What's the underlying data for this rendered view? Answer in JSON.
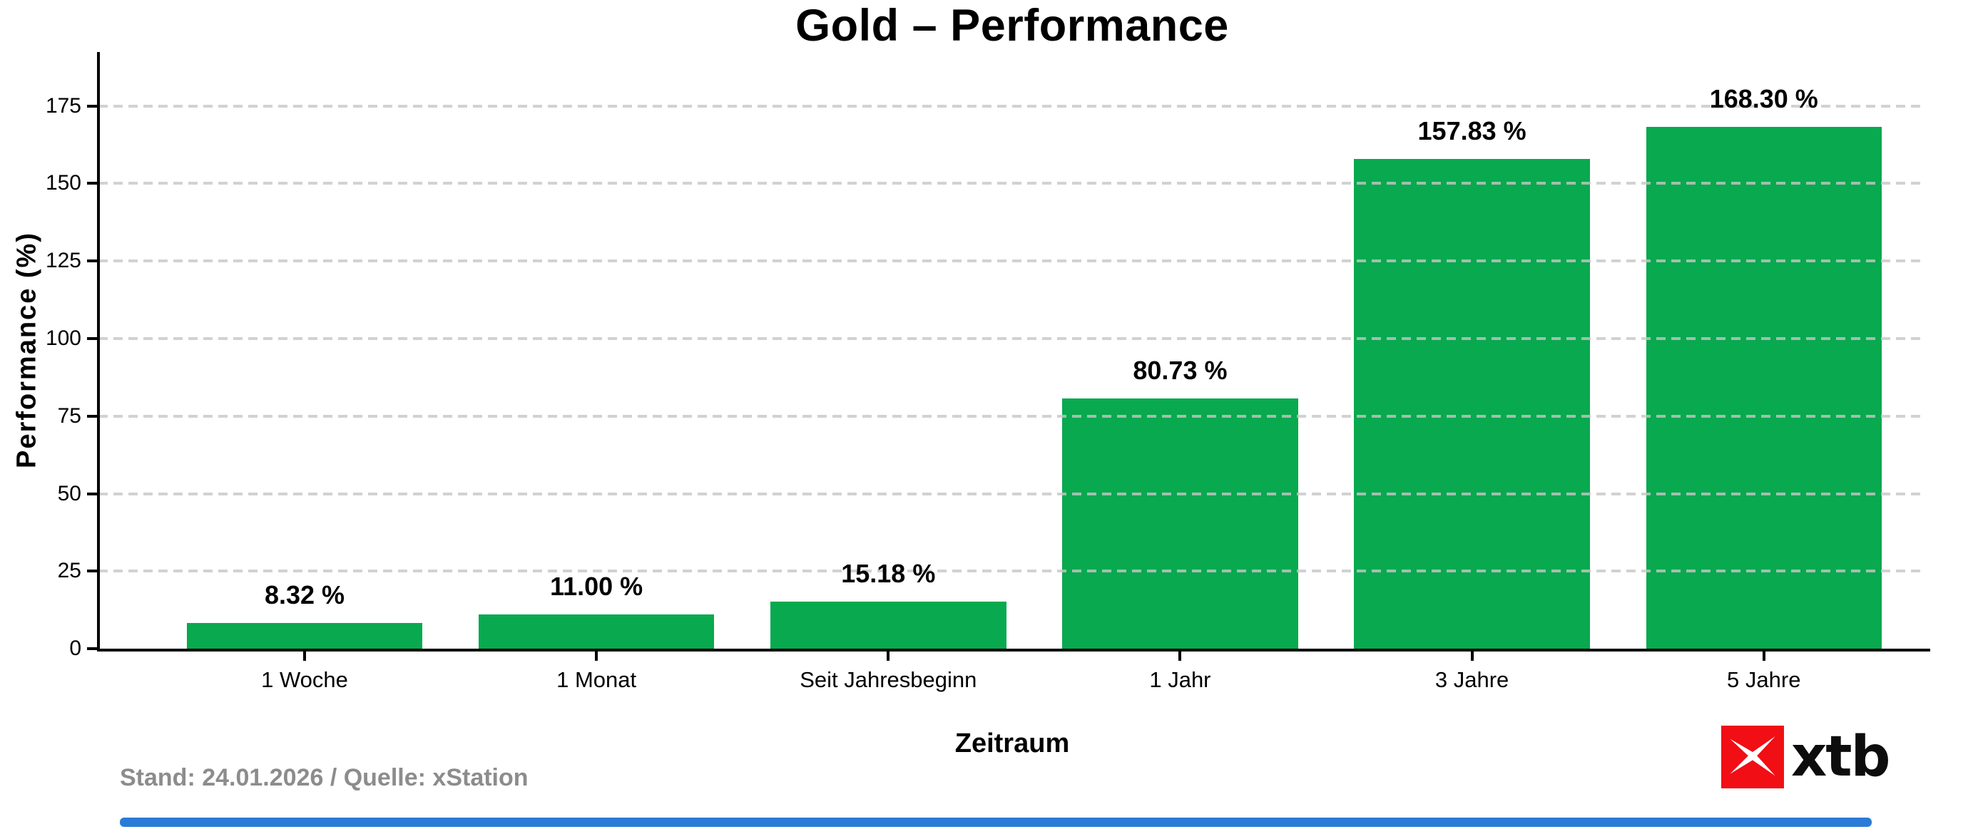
{
  "title": "Gold – Performance",
  "chart_data": {
    "type": "bar",
    "title": "Gold – Performance",
    "categories": [
      "1 Woche",
      "1 Monat",
      "Seit Jahresbeginn",
      "1 Jahr",
      "3 Jahre",
      "5 Jahre"
    ],
    "values": [
      8.32,
      11.0,
      15.18,
      80.73,
      157.83,
      168.3
    ],
    "value_labels": [
      "8.32 %",
      "11.00 %",
      "15.18 %",
      "80.73 %",
      "157.83 %",
      "168.30 %"
    ],
    "xlabel": "Zeitraum",
    "ylabel": "Performance (%)",
    "y_ticks": [
      0,
      25,
      50,
      75,
      100,
      125,
      150,
      175
    ],
    "ylim": [
      0,
      192.4
    ],
    "grid": "dashed-horizontal",
    "legend_position": "none",
    "bar_color": "#08a94f"
  },
  "footer": {
    "stand_note": "Stand: 24.01.2026 / Quelle: xStation",
    "brand_wordmark": "xtb"
  },
  "icons": {
    "brand_icon": "xtb-x-mark"
  },
  "colors": {
    "bar_green": "#08a94f",
    "logo_red": "#f10e14",
    "grid_gray": "#c6c6c6",
    "note_gray": "#8c8c8c",
    "axis_black": "#000000",
    "scrollbar_blue": "#2b7ad7"
  }
}
